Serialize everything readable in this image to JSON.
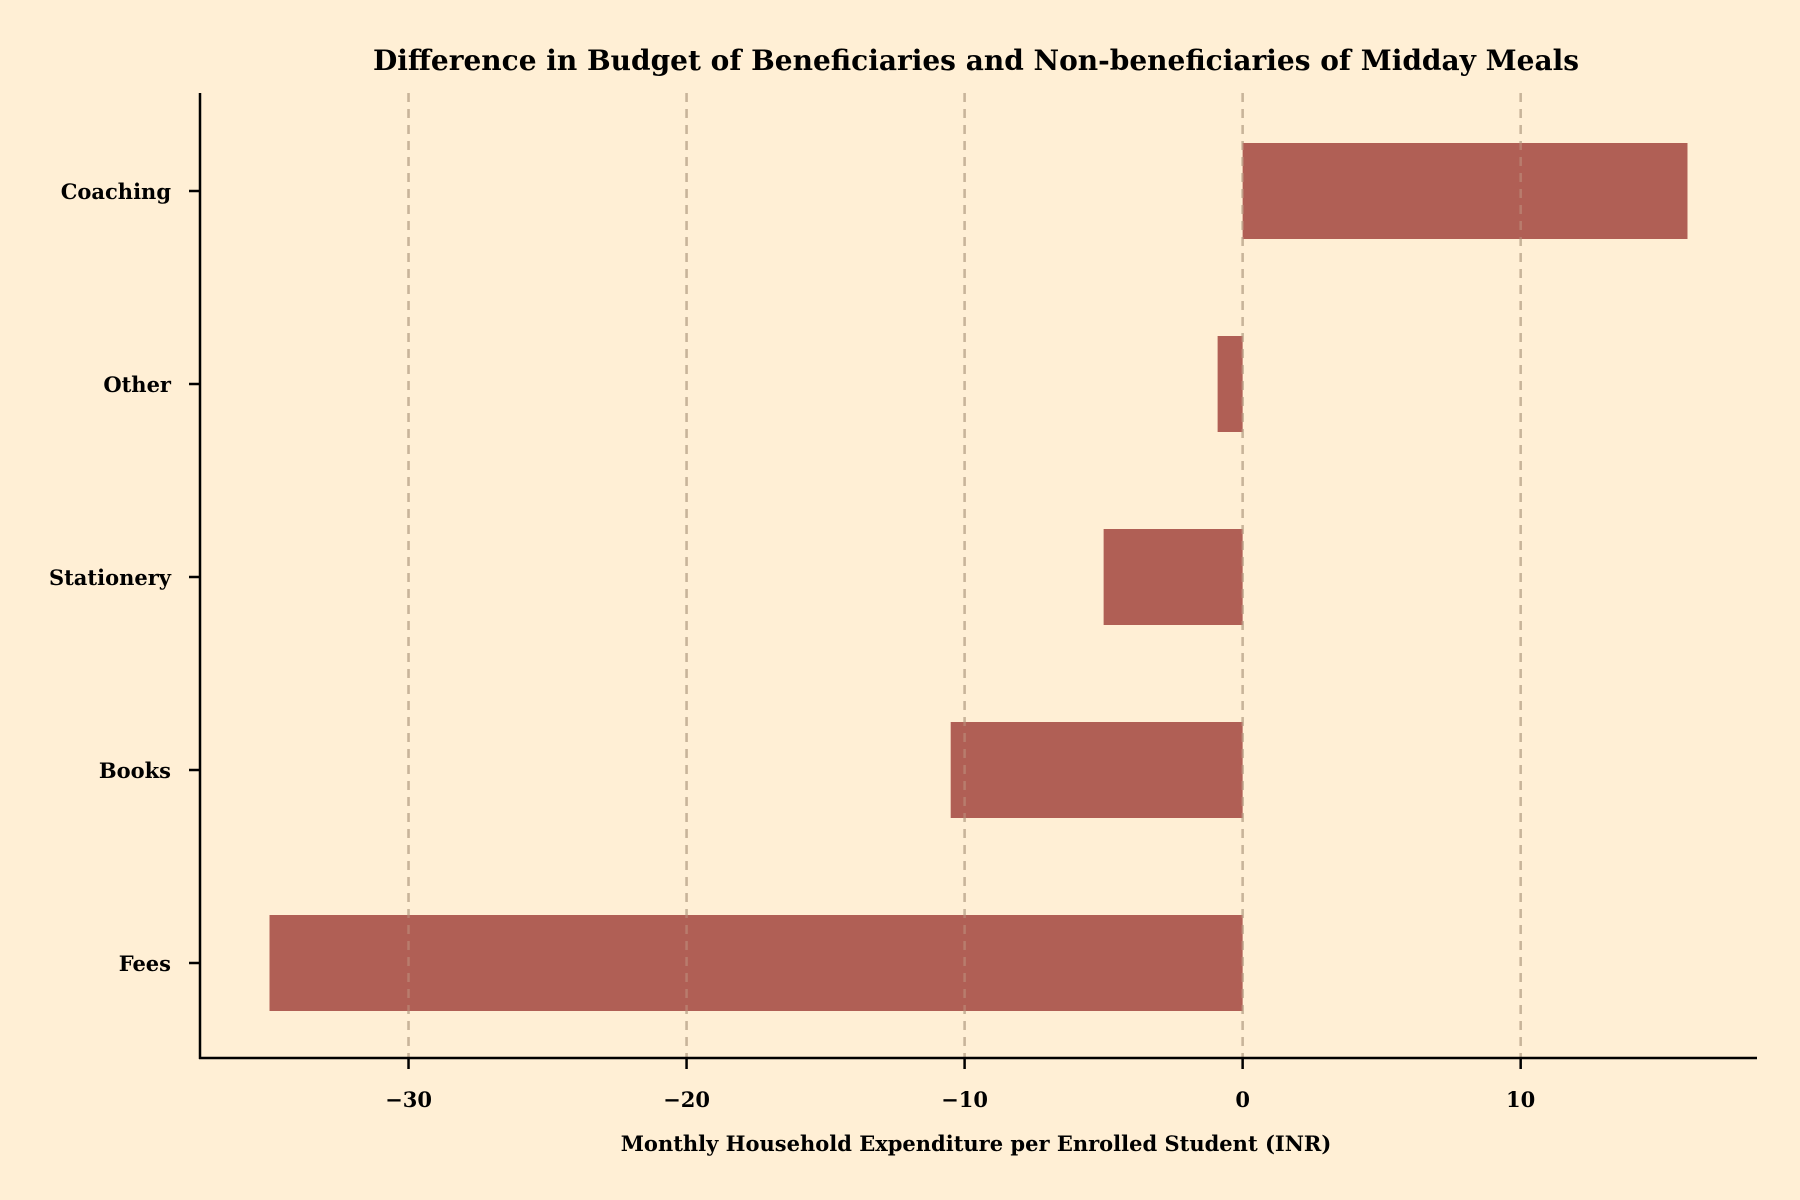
{
  "chart_data": {
    "type": "bar",
    "orientation": "horizontal",
    "title": "Difference in Budget of Beneficiaries and Non-beneficiaries of Midday Meals",
    "xlabel": "Monthly Household Expenditure per Enrolled Student (INR)",
    "ylabel": "",
    "categories": [
      "Coaching",
      "Other",
      "Stationery",
      "Books",
      "Fees"
    ],
    "values": [
      16,
      -0.9,
      -5,
      -10.5,
      -35
    ],
    "xlim": [
      -37.5,
      18.5
    ],
    "x_ticks": [
      -30,
      -20,
      -10,
      0,
      10
    ],
    "x_tick_labels": [
      "−30",
      "−20",
      "−10",
      "0",
      "10"
    ],
    "grid": "vertical dashed at x ticks",
    "legend": "none"
  },
  "colors": {
    "background": "#ffefd5",
    "bar": "#b05f55",
    "axis": "#000000",
    "grid": "#c8b49a",
    "text": "#000000"
  }
}
